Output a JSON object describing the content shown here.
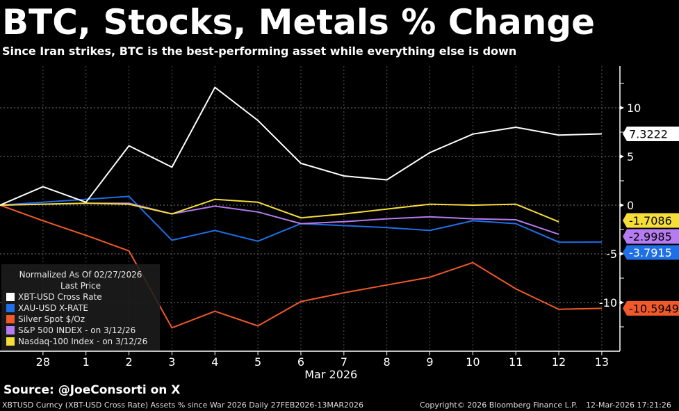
{
  "title": "BTC, Stocks, Metals % Change",
  "subtitle": "Since Iran strikes, BTC is the best-performing asset while everything else is down",
  "legend": {
    "header1": "Normalized As Of 02/27/2026",
    "header2": "Last Price",
    "items": [
      {
        "label": "XBT-USD Cross Rate",
        "color": "#ffffff"
      },
      {
        "label": "XAU-USD X-RATE",
        "color": "#1f6fe6"
      },
      {
        "label": "Silver Spot $/Oz",
        "color": "#f0592a"
      },
      {
        "label": "S&P 500 INDEX -  on 3/12/26",
        "color": "#b57bf0"
      },
      {
        "label": "Nasdaq-100 Index -  on 3/12/26",
        "color": "#f5dd3a"
      }
    ]
  },
  "source": "Source: @JoeConsorti on X",
  "footer": {
    "left": "XBTUSD Curncy (XBT-USD Cross Rate) Assets % since War 2026 Daily 27FEB2026-13MAR2026",
    "copyright": "Copyright© 2026 Bloomberg Finance L.P.",
    "timestamp": "12-Mar-2026 17:21:26"
  },
  "chart_data": {
    "type": "line",
    "x": [
      "2026-02-27",
      "2026-02-28",
      "2026-03-01",
      "2026-03-02",
      "2026-03-03",
      "2026-03-04",
      "2026-03-05",
      "2026-03-06",
      "2026-03-07",
      "2026-03-08",
      "2026-03-09",
      "2026-03-10",
      "2026-03-11",
      "2026-03-12",
      "2026-03-13"
    ],
    "xtick_labels": [
      "28",
      "1",
      "2",
      "3",
      "4",
      "5",
      "6",
      "7",
      "8",
      "9",
      "10",
      "11",
      "12",
      "13"
    ],
    "xlabel": "Mar 2026",
    "yticks": [
      10,
      5,
      0,
      -5,
      -10
    ],
    "ylim": [
      -14.5,
      12.8
    ],
    "y_axis_side": "right",
    "grid": true,
    "legend_position": "bottom-left",
    "series": [
      {
        "name": "XBT-USD Cross Rate",
        "color": "#ffffff",
        "last_label": "7.3222",
        "values": [
          0,
          1.9,
          0.3,
          6.1,
          3.9,
          12.1,
          8.7,
          4.3,
          3.0,
          2.6,
          5.4,
          7.3,
          8.0,
          7.2,
          7.3222
        ]
      },
      {
        "name": "XAU-USD X-RATE",
        "color": "#1f6fe6",
        "last_label": "-3.7915",
        "values": [
          0,
          0.3,
          0.6,
          0.9,
          -3.6,
          -2.6,
          -3.7,
          -1.9,
          -2.1,
          -2.3,
          -2.6,
          -1.6,
          -1.9,
          -3.8,
          -3.7915
        ]
      },
      {
        "name": "Silver Spot $/Oz",
        "color": "#f0592a",
        "last_label": "-10.5949",
        "values": [
          0,
          -1.6,
          -3.1,
          -4.7,
          -12.6,
          -10.9,
          -12.4,
          -9.9,
          -9.0,
          -8.2,
          -7.4,
          -5.9,
          -8.6,
          -10.7,
          -10.5949
        ]
      },
      {
        "name": "S&P 500 INDEX -  on 3/12/26",
        "color": "#b57bf0",
        "last_label": "-2.9985",
        "values": [
          0,
          0.1,
          0.2,
          0.2,
          -0.9,
          -0.1,
          -0.7,
          -1.9,
          -1.7,
          -1.4,
          -1.2,
          -1.4,
          -1.5,
          -2.9985,
          null
        ]
      },
      {
        "name": "Nasdaq-100 Index -  on 3/12/26",
        "color": "#f5dd3a",
        "last_label": "-1.7086",
        "values": [
          0,
          0.1,
          0.2,
          0.1,
          -0.9,
          0.6,
          0.3,
          -1.3,
          -0.9,
          -0.4,
          0.1,
          0.0,
          0.1,
          -1.7086,
          null
        ]
      }
    ]
  }
}
